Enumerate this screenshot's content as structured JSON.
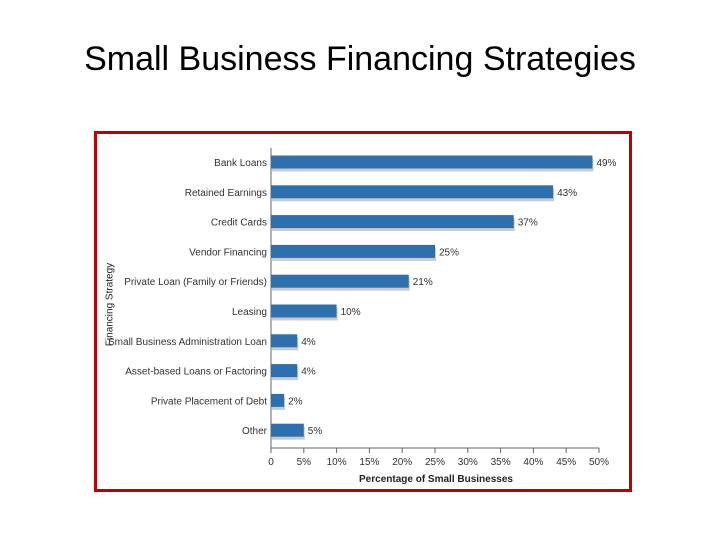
{
  "slide": {
    "title": "Small Business Financing Strategies"
  },
  "chart_data": {
    "type": "bar",
    "orientation": "horizontal",
    "title": "",
    "xlabel": "Percentage of Small Businesses",
    "ylabel": "Financing Strategy",
    "categories": [
      "Bank Loans",
      "Retained Earnings",
      "Credit Cards",
      "Vendor Financing",
      "Private Loan (Family or Friends)",
      "Leasing",
      "Small Business Administration Loan",
      "Asset-based Loans or Factoring",
      "Private Placement of Debt",
      "Other"
    ],
    "values": [
      49,
      43,
      37,
      25,
      21,
      10,
      4,
      4,
      2,
      5
    ],
    "value_labels": [
      "49%",
      "43%",
      "37%",
      "25%",
      "21%",
      "10%",
      "4%",
      "4%",
      "2%",
      "5%"
    ],
    "xlim": [
      0,
      50
    ],
    "xticks": [
      0,
      5,
      10,
      15,
      20,
      25,
      30,
      35,
      40,
      45,
      50
    ],
    "xtick_labels": [
      "0",
      "5%",
      "10%",
      "15%",
      "20%",
      "25%",
      "30%",
      "35%",
      "40%",
      "45%",
      "50%"
    ],
    "grid": false,
    "legend": "none",
    "colors": {
      "bar": "#2e6fad",
      "shadow": "#c8ccd2",
      "frame": "#c00000"
    }
  }
}
